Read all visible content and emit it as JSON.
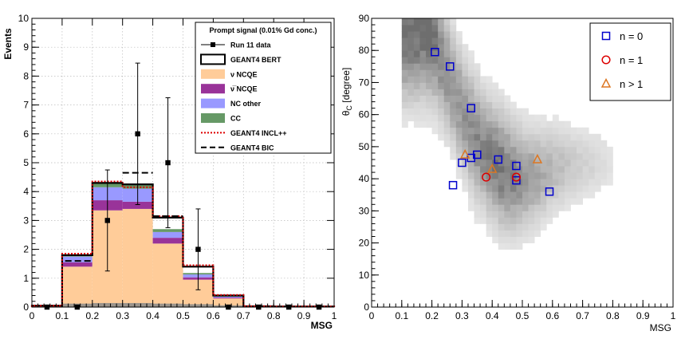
{
  "chart_data": [
    {
      "type": "bar",
      "subtype": "stacked-histogram",
      "xlabel": "MSG",
      "ylabel": "Events",
      "xlim": [
        0,
        1
      ],
      "ylim": [
        0,
        10
      ],
      "grid": true,
      "xticks": [
        "0",
        "0.1",
        "0.2",
        "0.3",
        "0.4",
        "0.5",
        "0.6",
        "0.7",
        "0.8",
        "0.9",
        "1"
      ],
      "yticks": [
        "0",
        "1",
        "2",
        "3",
        "4",
        "5",
        "6",
        "7",
        "8",
        "9",
        "10"
      ],
      "bin_edges": [
        0,
        0.1,
        0.2,
        0.3,
        0.4,
        0.5,
        0.6,
        0.7,
        0.8,
        0.9,
        1.0
      ],
      "legend": {
        "title": "Prompt signal (0.01% Gd conc.)",
        "entries": [
          {
            "label": "Run 11 data",
            "style": "marker-line",
            "color": "#000000"
          },
          {
            "label": "GEANT4 BERT",
            "style": "box-outline",
            "color": "#000000"
          },
          {
            "label": "ν NCQE",
            "style": "fill",
            "color": "#ffcc99"
          },
          {
            "label": "ν̅ NCQE",
            "style": "fill",
            "color": "#993399"
          },
          {
            "label": "NC other",
            "style": "fill",
            "color": "#9999ff"
          },
          {
            "label": "CC",
            "style": "fill",
            "color": "#669966"
          },
          {
            "label": "GEANT4 INCL++",
            "style": "dotted",
            "color": "#dd0000"
          },
          {
            "label": "GEANT4 BIC",
            "style": "dashed",
            "color": "#000000"
          }
        ]
      },
      "stacks": [
        {
          "name": "ν NCQE",
          "color": "#ffcc99",
          "values": [
            0.05,
            1.4,
            3.35,
            3.4,
            2.2,
            0.95,
            0.3,
            0.02,
            0.01,
            0.01
          ]
        },
        {
          "name": "ν̅ NCQE",
          "color": "#993399",
          "values": [
            0.0,
            0.15,
            0.35,
            0.25,
            0.2,
            0.08,
            0.03,
            0.0,
            0.0,
            0.0
          ]
        },
        {
          "name": "NC other",
          "color": "#9999ff",
          "values": [
            0.0,
            0.2,
            0.45,
            0.45,
            0.2,
            0.1,
            0.03,
            0.0,
            0.0,
            0.0
          ]
        },
        {
          "name": "CC",
          "color": "#669966",
          "values": [
            0.0,
            0.05,
            0.15,
            0.15,
            0.1,
            0.05,
            0.02,
            0.0,
            0.0,
            0.0
          ]
        }
      ],
      "gray_band": {
        "color": "#888888",
        "values": [
          0.05,
          0.12,
          0.14,
          0.14,
          0.12,
          0.1,
          0.06,
          0.02,
          0.01,
          0.01
        ]
      },
      "bert_total": [
        0.05,
        1.8,
        4.3,
        4.25,
        3.1,
        1.4,
        0.4,
        0.03,
        0.02,
        0.02
      ],
      "incl_total": [
        0.05,
        1.85,
        4.35,
        4.15,
        3.15,
        1.45,
        0.42,
        0.03,
        0.02,
        0.02
      ],
      "bic_segments": [
        {
          "x0": 0.11,
          "x1": 0.2,
          "y": 1.6
        },
        {
          "x0": 0.2,
          "x1": 0.3,
          "y": 4.3
        },
        {
          "x0": 0.3,
          "x1": 0.4,
          "y": 4.65
        },
        {
          "x0": 0.4,
          "x1": 0.5,
          "y": 3.15
        }
      ],
      "data_points": [
        {
          "x": 0.05,
          "y": 0,
          "err": 0
        },
        {
          "x": 0.15,
          "y": 0,
          "err": 0
        },
        {
          "x": 0.25,
          "y": 3,
          "err": 1.75
        },
        {
          "x": 0.35,
          "y": 6,
          "err": 2.45
        },
        {
          "x": 0.45,
          "y": 5,
          "err": 2.25
        },
        {
          "x": 0.55,
          "y": 2,
          "err": 1.4
        },
        {
          "x": 0.65,
          "y": 0,
          "err": 0
        },
        {
          "x": 0.75,
          "y": 0,
          "err": 0
        },
        {
          "x": 0.85,
          "y": 0,
          "err": 0
        },
        {
          "x": 0.95,
          "y": 0,
          "err": 0
        }
      ]
    },
    {
      "type": "scatter",
      "subtype": "scatter-over-2d-histogram",
      "xlabel": "MSG",
      "ylabel": "θ_C [degree]",
      "ylabel_main": "θ",
      "ylabel_sub": "C",
      "ylabel_rest": " [degree]",
      "xlim": [
        0,
        1
      ],
      "ylim": [
        0,
        90
      ],
      "xticks": [
        "0",
        "0.1",
        "0.2",
        "0.3",
        "0.4",
        "0.5",
        "0.6",
        "0.7",
        "0.8",
        "0.9",
        "1"
      ],
      "yticks": [
        "0",
        "10",
        "20",
        "30",
        "40",
        "50",
        "60",
        "70",
        "80",
        "90"
      ],
      "heatmap_centers": [
        {
          "x": 0.2,
          "y": 86,
          "w": 5.0
        },
        {
          "x": 0.22,
          "y": 80,
          "w": 4.2
        },
        {
          "x": 0.25,
          "y": 73,
          "w": 3.6
        },
        {
          "x": 0.28,
          "y": 66,
          "w": 3.4
        },
        {
          "x": 0.31,
          "y": 59,
          "w": 3.5
        },
        {
          "x": 0.34,
          "y": 53,
          "w": 3.8
        },
        {
          "x": 0.38,
          "y": 48,
          "w": 4.2
        },
        {
          "x": 0.42,
          "y": 44,
          "w": 4.6
        },
        {
          "x": 0.46,
          "y": 41,
          "w": 4.2
        },
        {
          "x": 0.5,
          "y": 40,
          "w": 3.5
        },
        {
          "x": 0.55,
          "y": 41,
          "w": 2.8
        },
        {
          "x": 0.6,
          "y": 43,
          "w": 2.1
        },
        {
          "x": 0.66,
          "y": 44,
          "w": 1.5
        },
        {
          "x": 0.72,
          "y": 45,
          "w": 1.0
        }
      ],
      "legend": {
        "entries": [
          {
            "label": "n = 0",
            "marker": "square",
            "color": "#0000cc"
          },
          {
            "label": "n = 1",
            "marker": "circle",
            "color": "#dd0000"
          },
          {
            "label": "n > 1",
            "marker": "triangle",
            "color": "#dd7722"
          }
        ]
      },
      "series": [
        {
          "name": "n = 0",
          "marker": "square",
          "color": "#0000cc",
          "points": [
            [
              0.21,
              79.5
            ],
            [
              0.26,
              75
            ],
            [
              0.33,
              62
            ],
            [
              0.3,
              45
            ],
            [
              0.33,
              46.5
            ],
            [
              0.35,
              47.5
            ],
            [
              0.42,
              46
            ],
            [
              0.48,
              44
            ],
            [
              0.27,
              38
            ],
            [
              0.48,
              39.5
            ],
            [
              0.59,
              36
            ]
          ]
        },
        {
          "name": "n = 1",
          "marker": "circle",
          "color": "#dd0000",
          "points": [
            [
              0.38,
              40.5
            ],
            [
              0.48,
              40.5
            ]
          ]
        },
        {
          "name": "n > 1",
          "marker": "triangle",
          "color": "#dd7722",
          "points": [
            [
              0.31,
              47.5
            ],
            [
              0.4,
              43
            ],
            [
              0.55,
              46
            ]
          ]
        }
      ]
    }
  ]
}
